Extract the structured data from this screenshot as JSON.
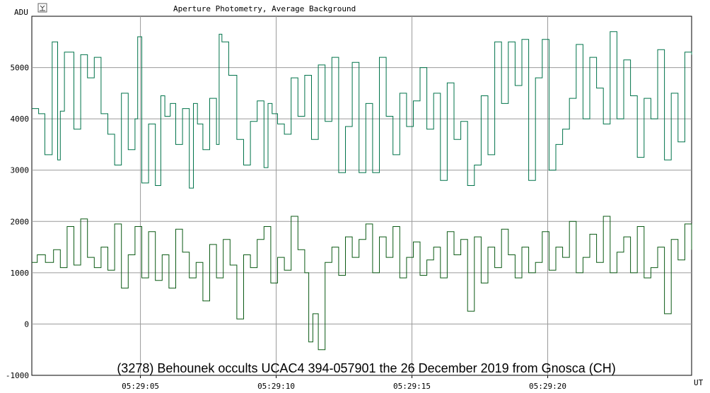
{
  "window": {
    "icon": "chart-options-icon"
  },
  "chart_data": {
    "type": "line",
    "title": "Aperture Photometry, Average Background",
    "caption": "(3278) Behounek occults UCAC4 394-057901 the 26 December 2019 from Gnosca (CH)",
    "ylabel": "ADU",
    "xlabel": "UT",
    "ylim": [
      -1000,
      6000
    ],
    "yticks": [
      -1000,
      0,
      1000,
      2000,
      3000,
      4000,
      5000
    ],
    "xlim": [
      0,
      24.3
    ],
    "xtick_values": [
      4,
      9,
      14,
      19
    ],
    "xtick_labels": [
      "05:29:05",
      "05:29:10",
      "05:29:15",
      "05:29:20"
    ],
    "grid": true,
    "series_colors": [
      "#00734a",
      "#0b5a14"
    ],
    "series": [
      {
        "x": [
          0.0,
          0.25,
          0.48,
          0.75,
          0.95,
          1.05,
          1.2,
          1.55,
          1.8,
          2.05,
          2.3,
          2.55,
          2.8,
          3.05,
          3.3,
          3.55,
          3.8,
          3.9,
          4.05,
          4.3,
          4.55,
          4.75,
          4.9,
          5.1,
          5.3,
          5.55,
          5.8,
          5.95,
          6.1,
          6.3,
          6.55,
          6.8,
          6.9,
          7.0,
          7.25,
          7.55,
          7.8,
          8.05,
          8.3,
          8.55,
          8.7,
          8.85,
          9.05,
          9.3,
          9.55,
          9.8,
          10.05,
          10.3,
          10.55,
          10.8,
          11.05,
          11.3,
          11.55,
          11.8,
          12.05,
          12.3,
          12.55,
          12.8,
          13.05,
          13.3,
          13.55,
          13.8,
          14.05,
          14.3,
          14.55,
          14.8,
          15.05,
          15.3,
          15.55,
          15.8,
          16.05,
          16.3,
          16.55,
          16.8,
          17.05,
          17.3,
          17.55,
          17.8,
          18.05,
          18.3,
          18.55,
          18.8,
          19.05,
          19.3,
          19.55,
          19.8,
          20.05,
          20.3,
          20.55,
          20.8,
          21.05,
          21.3,
          21.55,
          21.8,
          22.05,
          22.3,
          22.55,
          22.8,
          23.05,
          23.3,
          23.55,
          23.8,
          24.05,
          24.3
        ],
        "y": [
          4200,
          4100,
          3300,
          5500,
          3200,
          4150,
          5300,
          3800,
          5250,
          4800,
          5200,
          4100,
          3700,
          3100,
          4500,
          3400,
          4000,
          5600,
          2750,
          3900,
          2700,
          4450,
          4050,
          4300,
          3500,
          4200,
          2650,
          4300,
          3900,
          3400,
          4400,
          3500,
          5650,
          5500,
          4850,
          3600,
          3100,
          3950,
          4350,
          3050,
          4300,
          4100,
          3900,
          3700,
          4800,
          4050,
          4850,
          3600,
          5050,
          3950,
          5200,
          2950,
          3850,
          5100,
          2950,
          4300,
          2950,
          5200,
          4050,
          3300,
          4500,
          3850,
          4350,
          5000,
          3800,
          4500,
          2800,
          4700,
          3600,
          3950,
          2700,
          3100,
          4450,
          3300,
          5500,
          4300,
          5500,
          4650,
          5550,
          2800,
          4800,
          5550,
          3000,
          3500,
          3800,
          4400,
          5450,
          4000,
          5200,
          4600,
          3900,
          5700,
          4000,
          5150,
          4450,
          3250,
          4400,
          4000,
          5350,
          3200,
          4500,
          3550,
          5300,
          5250
        ]
      },
      {
        "x": [
          0.0,
          0.2,
          0.5,
          0.8,
          1.05,
          1.3,
          1.55,
          1.8,
          2.05,
          2.3,
          2.55,
          2.8,
          3.05,
          3.3,
          3.55,
          3.8,
          4.05,
          4.3,
          4.55,
          4.8,
          5.05,
          5.3,
          5.55,
          5.8,
          6.05,
          6.3,
          6.55,
          6.8,
          7.05,
          7.3,
          7.55,
          7.8,
          8.05,
          8.3,
          8.55,
          8.8,
          9.05,
          9.3,
          9.55,
          9.8,
          10.05,
          10.2,
          10.35,
          10.55,
          10.8,
          11.05,
          11.3,
          11.55,
          11.8,
          12.05,
          12.3,
          12.55,
          12.8,
          13.05,
          13.3,
          13.55,
          13.8,
          14.05,
          14.3,
          14.55,
          14.8,
          15.05,
          15.3,
          15.55,
          15.8,
          16.05,
          16.3,
          16.55,
          16.8,
          17.05,
          17.3,
          17.55,
          17.8,
          18.05,
          18.3,
          18.55,
          18.8,
          19.05,
          19.3,
          19.55,
          19.8,
          20.05,
          20.3,
          20.55,
          20.8,
          21.05,
          21.3,
          21.55,
          21.8,
          22.05,
          22.3,
          22.55,
          22.8,
          23.05,
          23.3,
          23.55,
          23.8,
          24.05,
          24.3
        ],
        "y": [
          1200,
          1350,
          1200,
          1450,
          1100,
          1900,
          1150,
          2050,
          1300,
          1100,
          1500,
          1050,
          1950,
          700,
          1350,
          1900,
          900,
          1800,
          850,
          1350,
          700,
          1850,
          1400,
          900,
          1200,
          450,
          1550,
          900,
          1650,
          1150,
          100,
          1350,
          1100,
          1650,
          1900,
          800,
          1300,
          1050,
          2100,
          1450,
          1000,
          -350,
          200,
          -500,
          1200,
          1500,
          950,
          1700,
          1300,
          1650,
          1950,
          1000,
          1700,
          1300,
          1900,
          900,
          1300,
          1600,
          950,
          1250,
          1500,
          900,
          1800,
          1350,
          1650,
          250,
          1700,
          800,
          1500,
          1100,
          1850,
          1350,
          900,
          1500,
          1000,
          1200,
          1800,
          1050,
          1500,
          1300,
          2000,
          1000,
          1300,
          1750,
          1200,
          2100,
          1000,
          1400,
          1700,
          1000,
          1900,
          900,
          1100,
          1500,
          200,
          1650,
          1250,
          1950,
          1450
        ]
      }
    ]
  }
}
